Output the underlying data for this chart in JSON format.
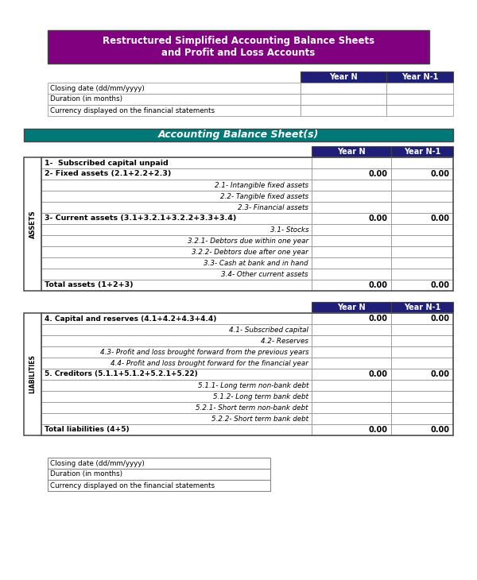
{
  "title_bg": "#800080",
  "teal_bg": "#007878",
  "navy_bg": "#1f1f7a",
  "white": "#ffffff",
  "black": "#000000",
  "light_gray": "#f0f0f0",
  "border_dark": "#555555",
  "border_light": "#aaaaaa",
  "top_table_rows": [
    "Closing date (dd/mm/yyyy)",
    "Duration (in months)",
    "Currency displayed on the financial statements"
  ],
  "section1_title": "Accounting Balance Sheet(s)",
  "assets_rows": [
    {
      "label": "1-  Subscribed capital unpaid",
      "bold": true,
      "indent": 0,
      "year_n": "",
      "year_n1": ""
    },
    {
      "label": "2- Fixed assets (2.1+2.2+2.3)",
      "bold": true,
      "indent": 0,
      "year_n": "0.00",
      "year_n1": "0.00"
    },
    {
      "label": "2.1- Intangible fixed assets",
      "bold": false,
      "indent": 1,
      "year_n": "",
      "year_n1": ""
    },
    {
      "label": "2.2- Tangible fixed assets",
      "bold": false,
      "indent": 1,
      "year_n": "",
      "year_n1": ""
    },
    {
      "label": "2.3- Financial assets",
      "bold": false,
      "indent": 1,
      "year_n": "",
      "year_n1": ""
    },
    {
      "label": "3- Current assets (3.1+3.2.1+3.2.2+3.3+3.4)",
      "bold": true,
      "indent": 0,
      "year_n": "0.00",
      "year_n1": "0.00"
    },
    {
      "label": "3.1- Stocks",
      "bold": false,
      "indent": 1,
      "year_n": "",
      "year_n1": ""
    },
    {
      "label": "3.2.1- Debtors due within one year",
      "bold": false,
      "indent": 1,
      "year_n": "",
      "year_n1": ""
    },
    {
      "label": "3.2.2- Debtors due after one year",
      "bold": false,
      "indent": 1,
      "year_n": "",
      "year_n1": ""
    },
    {
      "label": "3.3- Cash at bank and in hand",
      "bold": false,
      "indent": 1,
      "year_n": "",
      "year_n1": ""
    },
    {
      "label": "3.4- Other current assets",
      "bold": false,
      "indent": 1,
      "year_n": "",
      "year_n1": ""
    },
    {
      "label": "Total assets (1+2+3)",
      "bold": true,
      "indent": 0,
      "year_n": "0.00",
      "year_n1": "0.00"
    }
  ],
  "liabilities_rows": [
    {
      "label": "4. Capital and reserves (4.1+4.2+4.3+4.4)",
      "bold": true,
      "indent": 0,
      "year_n": "0.00",
      "year_n1": "0.00"
    },
    {
      "label": "4.1- Subscribed capital",
      "bold": false,
      "indent": 1,
      "year_n": "",
      "year_n1": ""
    },
    {
      "label": "4.2- Reserves",
      "bold": false,
      "indent": 1,
      "year_n": "",
      "year_n1": ""
    },
    {
      "label": "4.3- Profit and loss brought forward from the previous years",
      "bold": false,
      "indent": 1,
      "year_n": "",
      "year_n1": ""
    },
    {
      "label": "4.4- Profit and loss brought forward for the financial year",
      "bold": false,
      "indent": 1,
      "year_n": "",
      "year_n1": ""
    },
    {
      "label": "5. Creditors (5.1.1+5.1.2+5.2.1+5.22)",
      "bold": true,
      "indent": 0,
      "year_n": "0.00",
      "year_n1": "0.00"
    },
    {
      "label": "5.1.1- Long term non-bank debt",
      "bold": false,
      "indent": 1,
      "year_n": "",
      "year_n1": ""
    },
    {
      "label": "5.1.2- Long term bank debt",
      "bold": false,
      "indent": 1,
      "year_n": "",
      "year_n1": ""
    },
    {
      "label": "5.2.1- Short term non-bank debt",
      "bold": false,
      "indent": 1,
      "year_n": "",
      "year_n1": ""
    },
    {
      "label": "5.2.2- Short term bank debt",
      "bold": false,
      "indent": 1,
      "year_n": "",
      "year_n1": ""
    },
    {
      "label": "Total liabilities (4+5)",
      "bold": true,
      "indent": 0,
      "year_n": "0.00",
      "year_n1": "0.00"
    }
  ],
  "bottom_rows": [
    "Closing date (dd/mm/yyyy)",
    "Duration (in months)",
    "Currency displayed on the financial statements"
  ]
}
